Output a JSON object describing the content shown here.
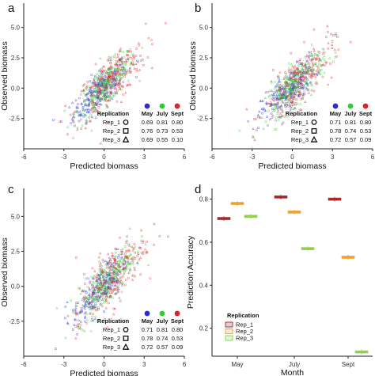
{
  "chart_data": [
    {
      "panel_label": "a",
      "type": "scatter",
      "xlabel": "Predicted biomass",
      "ylabel": "Observed biomass",
      "xlim": [
        -6,
        6
      ],
      "ylim": [
        -5,
        7
      ],
      "xticks": [
        "-6",
        "-3",
        "0",
        "3",
        "6"
      ],
      "yticks": [
        "-2.5",
        "0.0",
        "2.5",
        "5.0"
      ],
      "xtick_values": [
        -6,
        -3,
        0,
        3,
        6
      ],
      "ytick_values": [
        -2.5,
        0,
        2.5,
        5
      ],
      "series": [
        {
          "name": "May",
          "color": "#2b2bd6"
        },
        {
          "name": "July",
          "color": "#2fcf2f"
        },
        {
          "name": "Sept",
          "color": "#e0202a"
        }
      ],
      "table": {
        "title": "Replication",
        "columns": [
          "May",
          "July",
          "Sept"
        ],
        "rows": [
          {
            "label": "Rep_1",
            "shape": "circle",
            "values": [
              "0.69",
              "0.81",
              "0.80"
            ]
          },
          {
            "label": "Rep_2",
            "shape": "square",
            "values": [
              "0.76",
              "0.73",
              "0.53"
            ]
          },
          {
            "label": "Rep_3",
            "shape": "triangle",
            "values": [
              "0.69",
              "0.55",
              "0.10"
            ]
          }
        ]
      }
    },
    {
      "panel_label": "b",
      "type": "scatter",
      "xlabel": "Predicted biomass",
      "ylabel": "Observed biomass",
      "xlim": [
        -6,
        6
      ],
      "ylim": [
        -5,
        7
      ],
      "xticks": [
        "-6",
        "-3",
        "0",
        "3",
        "6"
      ],
      "yticks": [
        "-2.5",
        "0.0",
        "2.5",
        "5.0"
      ],
      "xtick_values": [
        -6,
        -3,
        0,
        3,
        6
      ],
      "ytick_values": [
        -2.5,
        0,
        2.5,
        5
      ],
      "series": [
        {
          "name": "May",
          "color": "#2b2bd6"
        },
        {
          "name": "July",
          "color": "#2fcf2f"
        },
        {
          "name": "Sept",
          "color": "#e0202a"
        }
      ],
      "table": {
        "title": "Replication",
        "columns": [
          "May",
          "July",
          "Sept"
        ],
        "rows": [
          {
            "label": "Rep_1",
            "shape": "circle",
            "values": [
              "0.71",
              "0.81",
              "0.80"
            ]
          },
          {
            "label": "Rep_2",
            "shape": "square",
            "values": [
              "0.78",
              "0.74",
              "0.53"
            ]
          },
          {
            "label": "Rep_3",
            "shape": "triangle",
            "values": [
              "0.72",
              "0.57",
              "0.09"
            ]
          }
        ]
      }
    },
    {
      "panel_label": "c",
      "type": "scatter",
      "xlabel": "Predicted biomass",
      "ylabel": "Observed biomass",
      "xlim": [
        -6,
        6
      ],
      "ylim": [
        -5,
        7
      ],
      "xticks": [
        "-6",
        "-3",
        "0",
        "3",
        "6"
      ],
      "yticks": [
        "-2.5",
        "0.0",
        "2.5",
        "5.0"
      ],
      "xtick_values": [
        -6,
        -3,
        0,
        3,
        6
      ],
      "ytick_values": [
        -2.5,
        0,
        2.5,
        5
      ],
      "series": [
        {
          "name": "May",
          "color": "#2b2bd6"
        },
        {
          "name": "July",
          "color": "#2fcf2f"
        },
        {
          "name": "Sept",
          "color": "#e0202a"
        }
      ],
      "table": {
        "title": "Replication",
        "columns": [
          "May",
          "July",
          "Sept"
        ],
        "rows": [
          {
            "label": "Rep_1",
            "shape": "circle",
            "values": [
              "0.71",
              "0.81",
              "0.80"
            ]
          },
          {
            "label": "Rep_2",
            "shape": "square",
            "values": [
              "0.78",
              "0.74",
              "0.53"
            ]
          },
          {
            "label": "Rep_3",
            "shape": "triangle",
            "values": [
              "0.72",
              "0.57",
              "0.09"
            ]
          }
        ]
      }
    },
    {
      "panel_label": "d",
      "type": "scatter",
      "xlabel": "Month",
      "ylabel": "Prediction Accuracy",
      "categories": [
        "May",
        "July",
        "Sept"
      ],
      "ylim": [
        0.07,
        0.85
      ],
      "yticks": [
        "0.2",
        "0.4",
        "0.6",
        "0.8"
      ],
      "ytick_values": [
        0.2,
        0.4,
        0.6,
        0.8
      ],
      "series": [
        {
          "name": "Rep_1",
          "color": "#a52a2a",
          "values": [
            0.71,
            0.81,
            0.8
          ]
        },
        {
          "name": "Rep_2",
          "color": "#f0a030",
          "values": [
            0.78,
            0.74,
            0.53
          ]
        },
        {
          "name": "Rep_3",
          "color": "#8fd14f",
          "values": [
            0.72,
            0.57,
            0.09
          ]
        }
      ],
      "legend": {
        "title": "Replication",
        "position": "bottom-left"
      }
    }
  ]
}
